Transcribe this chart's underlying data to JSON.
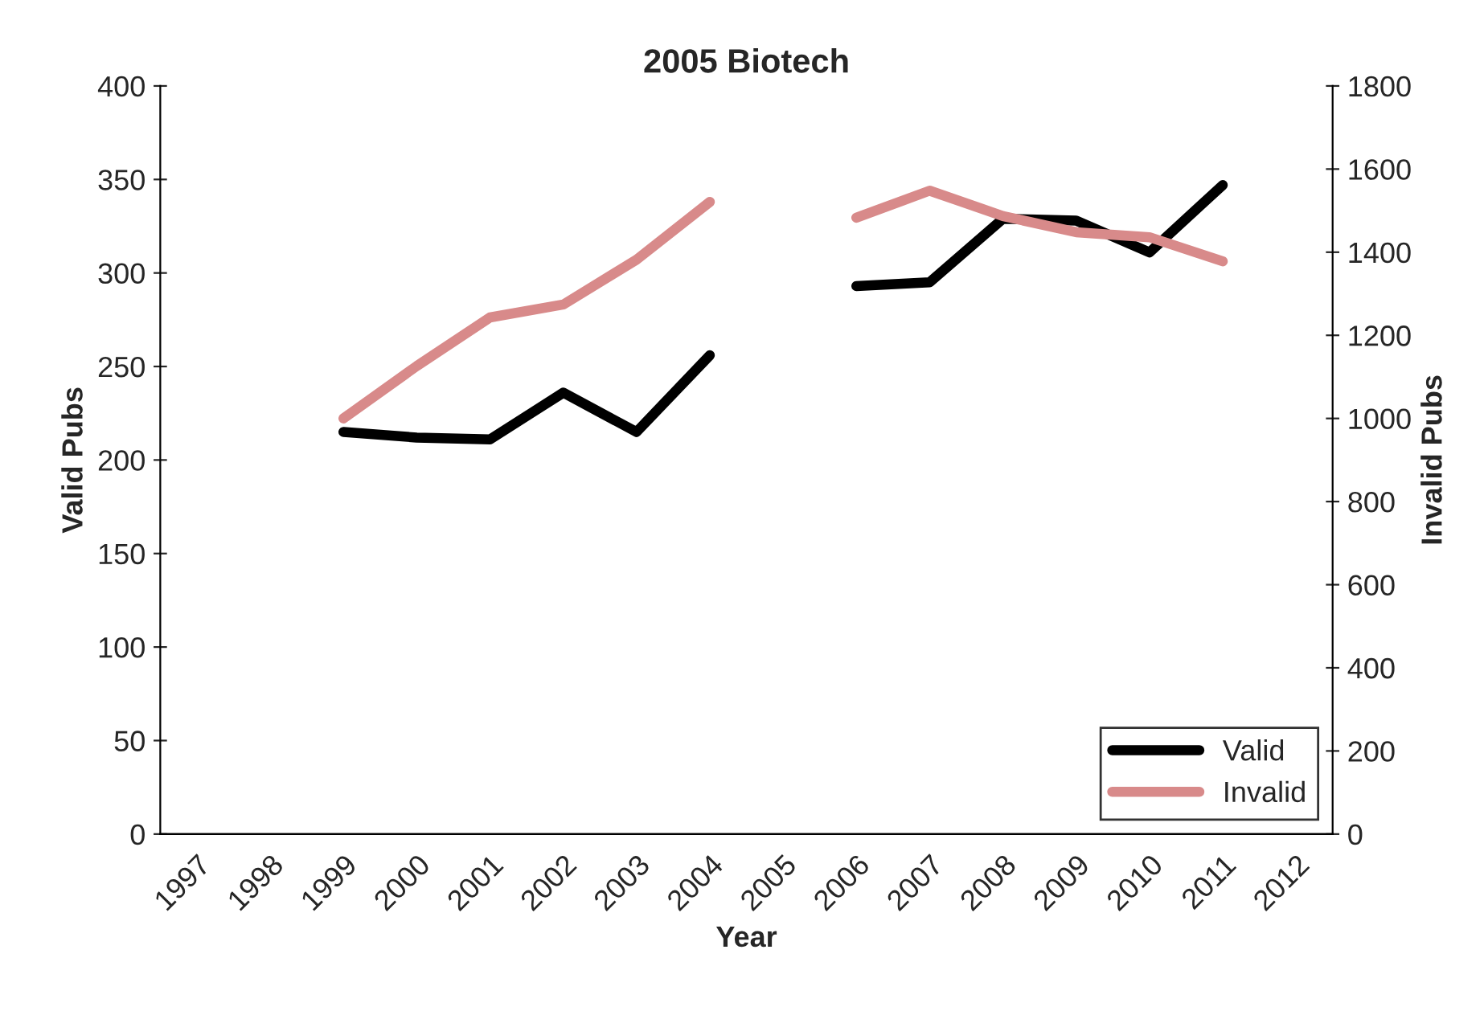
{
  "chart_data": {
    "type": "line",
    "title": "2005 Biotech",
    "xlabel": "Year",
    "ylabel": "Valid Pubs",
    "y2label": "Invalid Pubs",
    "categories": [
      "1997",
      "1998",
      "1999",
      "2000",
      "2001",
      "2002",
      "2003",
      "2004",
      "2005",
      "2006",
      "2007",
      "2008",
      "2009",
      "2010",
      "2011",
      "2012"
    ],
    "series": [
      {
        "name": "Valid",
        "color": "#000000",
        "values": [
          null,
          null,
          215,
          212,
          211,
          236,
          215,
          256,
          null,
          293,
          295,
          329,
          328,
          311,
          347,
          null
        ]
      },
      {
        "name": "Invalid",
        "color": "#d88a8a",
        "axis": "y2",
        "values": [
          null,
          null,
          1000,
          1126,
          1243,
          1274,
          1382,
          1521,
          null,
          1483,
          1548,
          1487,
          1448,
          1436,
          1378,
          null
        ]
      }
    ],
    "ylim": [
      0,
      400
    ],
    "yticks": [
      0,
      50,
      100,
      150,
      200,
      250,
      300,
      350,
      400
    ],
    "y2lim": [
      0,
      1800
    ],
    "y2ticks": [
      0,
      200,
      400,
      600,
      800,
      1000,
      1200,
      1400,
      1600,
      1800
    ],
    "grid": false,
    "legend": "bottom right",
    "marker": "none",
    "line_style": "solid"
  }
}
